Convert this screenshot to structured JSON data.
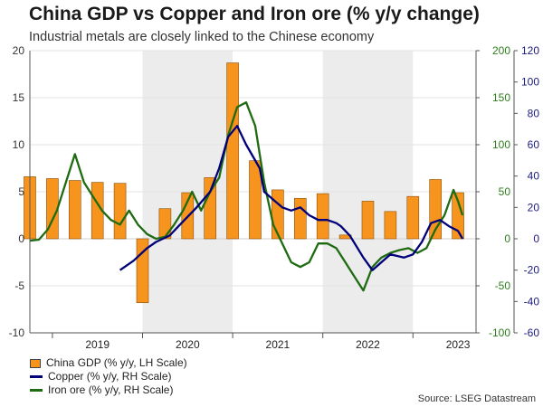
{
  "chart_data": {
    "type": "bar+line",
    "title": "China GDP vs Copper and Iron ore (% y/y change)",
    "subtitle": "Industrial metals are closely linked to the Chinese economy",
    "source": "Source: LSEG Datastream",
    "x_years": [
      "2019",
      "2020",
      "2021",
      "2022",
      "2023"
    ],
    "axes": {
      "left": {
        "min": -10,
        "max": 20,
        "ticks": [
          -10,
          -5,
          0,
          5,
          10,
          15,
          20
        ],
        "color": "#333333"
      },
      "right1": {
        "min": -100,
        "max": 200,
        "ticks": [
          -100,
          -50,
          0,
          50,
          100,
          150,
          200
        ],
        "color": "#2e7d1a"
      },
      "right2": {
        "min": -60,
        "max": 120,
        "ticks": [
          -60,
          -40,
          -20,
          0,
          20,
          40,
          60,
          80,
          100,
          120
        ],
        "color": "#1a1a80"
      }
    },
    "shaded_years": [
      "2020",
      "2022"
    ],
    "colors": {
      "bar": "#f7941d",
      "copper": "#00007a",
      "iron": "#1f6b12",
      "shade": "#ececec"
    },
    "series": [
      {
        "name": "China GDP (% y/y, LH Scale)",
        "type": "bar",
        "axis": "left",
        "x": [
          2018.75,
          2019.0,
          2019.25,
          2019.5,
          2019.75,
          2020.0,
          2020.25,
          2020.5,
          2020.75,
          2021.0,
          2021.25,
          2021.5,
          2021.75,
          2022.0,
          2022.25,
          2022.5,
          2022.75,
          2023.0,
          2023.25,
          2023.5
        ],
        "values": [
          6.6,
          6.4,
          6.2,
          6.0,
          5.9,
          -6.8,
          3.2,
          4.9,
          6.5,
          18.7,
          8.3,
          5.2,
          4.3,
          4.8,
          0.4,
          4.0,
          2.9,
          4.5,
          6.3,
          4.9
        ]
      },
      {
        "name": "Copper (% y/y, RH Scale)",
        "type": "line",
        "axis": "right2",
        "x": [
          2019.75,
          2019.9,
          2020.05,
          2020.15,
          2020.3,
          2020.4,
          2020.5,
          2020.6,
          2020.75,
          2020.85,
          2020.95,
          2021.05,
          2021.15,
          2021.3,
          2021.35,
          2021.45,
          2021.55,
          2021.65,
          2021.75,
          2021.85,
          2021.95,
          2022.05,
          2022.15,
          2022.2,
          2022.3,
          2022.45,
          2022.55,
          2022.65,
          2022.75,
          2022.9,
          2023.0,
          2023.1,
          2023.2,
          2023.3,
          2023.4,
          2023.5,
          2023.55
        ],
        "values": [
          -20,
          -14,
          -6,
          -2,
          2,
          8,
          14,
          20,
          30,
          45,
          65,
          72,
          60,
          45,
          30,
          25,
          20,
          18,
          20,
          15,
          12,
          12,
          10,
          8,
          2,
          -12,
          -20,
          -15,
          -10,
          -12,
          -10,
          -2,
          10,
          12,
          8,
          5,
          0
        ]
      },
      {
        "name": "Iron ore (% y/y, RH Scale)",
        "type": "line",
        "axis": "right1",
        "x": [
          2018.75,
          2018.85,
          2018.95,
          2019.05,
          2019.15,
          2019.25,
          2019.35,
          2019.45,
          2019.55,
          2019.65,
          2019.75,
          2019.85,
          2019.95,
          2020.05,
          2020.15,
          2020.25,
          2020.35,
          2020.45,
          2020.55,
          2020.65,
          2020.75,
          2020.85,
          2020.95,
          2021.05,
          2021.15,
          2021.25,
          2021.35,
          2021.45,
          2021.55,
          2021.65,
          2021.75,
          2021.85,
          2021.95,
          2022.05,
          2022.15,
          2022.25,
          2022.35,
          2022.45,
          2022.55,
          2022.65,
          2022.75,
          2022.85,
          2022.95,
          2023.05,
          2023.15,
          2023.25,
          2023.35,
          2023.45,
          2023.5,
          2023.55
        ],
        "values": [
          -2,
          -1,
          10,
          30,
          60,
          90,
          60,
          45,
          30,
          20,
          15,
          30,
          15,
          5,
          0,
          2,
          15,
          30,
          50,
          30,
          50,
          65,
          110,
          140,
          145,
          120,
          60,
          15,
          -5,
          -25,
          -30,
          -25,
          -5,
          -5,
          -10,
          -25,
          -40,
          -55,
          -30,
          -20,
          -15,
          -12,
          -10,
          -15,
          -10,
          10,
          25,
          52,
          40,
          25
        ]
      }
    ]
  }
}
